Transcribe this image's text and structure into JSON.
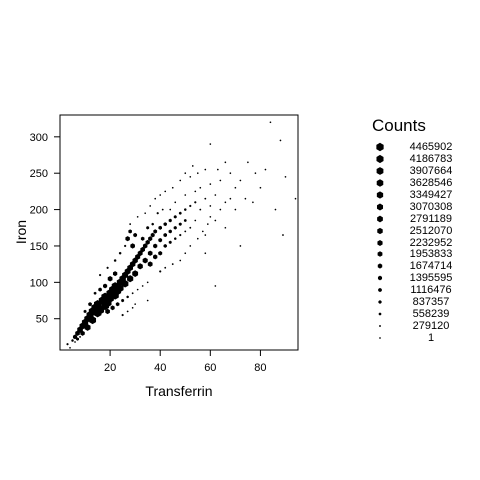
{
  "chart_data": {
    "type": "scatter",
    "subtype": "hexbin",
    "title": "",
    "xlabel": "Transferrin",
    "ylabel": "Iron",
    "xlim": [
      0,
      95
    ],
    "ylim": [
      7,
      330
    ],
    "x_ticks": [
      20,
      40,
      60,
      80
    ],
    "y_ticks": [
      50,
      100,
      150,
      200,
      250,
      300
    ],
    "grid": false,
    "legend_position": "right",
    "legend": {
      "title": "Counts",
      "values": [
        "4465902",
        "4186783",
        "3907664",
        "3628546",
        "3349427",
        "3070308",
        "2791189",
        "2512070",
        "2232952",
        "1953833",
        "1674714",
        "1395595",
        "1116476",
        "837357",
        "558239",
        "279120",
        "1"
      ]
    },
    "count_max": 4465902,
    "points": [
      [
        3,
        15,
        300000.0
      ],
      [
        5,
        20,
        400000.0
      ],
      [
        6,
        25,
        1200000.0
      ],
      [
        7,
        30,
        1500000.0
      ],
      [
        7,
        22,
        600000.0
      ],
      [
        8,
        35,
        2200000.0
      ],
      [
        9,
        30,
        1400000.0
      ],
      [
        9,
        40,
        2600000.0
      ],
      [
        10,
        45,
        2800000.0
      ],
      [
        11,
        38,
        2500000.0
      ],
      [
        11,
        50,
        3000000.0
      ],
      [
        12,
        55,
        3500000.0
      ],
      [
        13,
        48,
        3400000.0
      ],
      [
        13,
        60,
        4000000.0
      ],
      [
        14,
        65,
        3800000.0
      ],
      [
        15,
        58,
        4200000.0
      ],
      [
        15,
        70,
        3600000.0
      ],
      [
        16,
        62,
        4400000.0
      ],
      [
        17,
        75,
        4100000.0
      ],
      [
        18,
        68,
        4460000.0
      ],
      [
        18,
        80,
        3900000.0
      ],
      [
        19,
        72,
        4300000.0
      ],
      [
        20,
        85,
        3700000.0
      ],
      [
        20,
        78,
        4000000.0
      ],
      [
        21,
        90,
        3500000.0
      ],
      [
        22,
        82,
        3800000.0
      ],
      [
        22,
        95,
        3200000.0
      ],
      [
        23,
        88,
        3400000.0
      ],
      [
        24,
        100,
        3100000.0
      ],
      [
        24,
        92,
        3300000.0
      ],
      [
        25,
        105,
        2900000.0
      ],
      [
        26,
        98,
        3000000.0
      ],
      [
        26,
        110,
        2600000.0
      ],
      [
        27,
        115,
        2400000.0
      ],
      [
        28,
        105,
        2700000.0
      ],
      [
        28,
        120,
        2300000.0
      ],
      [
        29,
        125,
        2100000.0
      ],
      [
        30,
        112,
        2400000.0
      ],
      [
        30,
        130,
        2000000.0
      ],
      [
        31,
        135,
        1800000.0
      ],
      [
        32,
        122,
        2000000.0
      ],
      [
        32,
        140,
        1700000.0
      ],
      [
        33,
        145,
        1500000.0
      ],
      [
        34,
        130,
        1800000.0
      ],
      [
        34,
        150,
        1400000.0
      ],
      [
        35,
        155,
        1300000.0
      ],
      [
        36,
        140,
        1500000.0
      ],
      [
        36,
        160,
        1200000.0
      ],
      [
        37,
        165,
        1100000.0
      ],
      [
        38,
        150,
        1200000.0
      ],
      [
        38,
        170,
        1000000.0
      ],
      [
        40,
        175,
        900000.0
      ],
      [
        40,
        158,
        1000000.0
      ],
      [
        42,
        180,
        800000.0
      ],
      [
        42,
        165,
        900000.0
      ],
      [
        44,
        185,
        700000.0
      ],
      [
        44,
        170,
        800000.0
      ],
      [
        46,
        190,
        600000.0
      ],
      [
        46,
        175,
        700000.0
      ],
      [
        48,
        195,
        500000.0
      ],
      [
        48,
        180,
        600000.0
      ],
      [
        50,
        200,
        400000.0
      ],
      [
        50,
        185,
        500000.0
      ],
      [
        52,
        205,
        300000.0
      ],
      [
        54,
        210,
        300000.0
      ],
      [
        56,
        200,
        200000.0
      ],
      [
        58,
        215,
        200000.0
      ],
      [
        60,
        205,
        100000.0
      ],
      [
        62,
        220,
        100000.0
      ],
      [
        27,
        160,
        1400000.0
      ],
      [
        28,
        170,
        900000.0
      ],
      [
        29,
        150,
        1500000.0
      ],
      [
        30,
        165,
        1000000.0
      ],
      [
        33,
        160,
        900000.0
      ],
      [
        35,
        175,
        600000.0
      ],
      [
        37,
        180,
        400000.0
      ],
      [
        39,
        195,
        300000.0
      ],
      [
        41,
        200,
        200000.0
      ],
      [
        36,
        125,
        1600000.0
      ],
      [
        38,
        135,
        1300000.0
      ],
      [
        40,
        140,
        1100000.0
      ],
      [
        42,
        150,
        800000.0
      ],
      [
        44,
        155,
        600000.0
      ],
      [
        46,
        160,
        400000.0
      ],
      [
        48,
        165,
        300000.0
      ],
      [
        50,
        170,
        200000.0
      ],
      [
        52,
        175,
        200000.0
      ],
      [
        54,
        185,
        100000.0
      ],
      [
        20,
        105,
        1600000.0
      ],
      [
        22,
        112,
        1300000.0
      ],
      [
        18,
        95,
        1200000.0
      ],
      [
        16,
        90,
        900000.0
      ],
      [
        14,
        85,
        500000.0
      ],
      [
        12,
        70,
        900000.0
      ],
      [
        10,
        60,
        600000.0
      ],
      [
        19,
        60,
        1500000.0
      ],
      [
        21,
        65,
        1200000.0
      ],
      [
        23,
        70,
        900000.0
      ],
      [
        25,
        75,
        600000.0
      ],
      [
        27,
        80,
        400000.0
      ],
      [
        29,
        85,
        200000.0
      ],
      [
        31,
        90,
        100000.0
      ],
      [
        33,
        95,
        100000.0
      ],
      [
        35,
        100,
        100000.0
      ],
      [
        16,
        110,
        300000.0
      ],
      [
        19,
        120,
        300000.0
      ],
      [
        22,
        130,
        400000.0
      ],
      [
        24,
        140,
        400000.0
      ],
      [
        26,
        150,
        300000.0
      ],
      [
        28,
        180,
        200000.0
      ],
      [
        31,
        190,
        100000.0
      ],
      [
        34,
        195,
        100000.0
      ],
      [
        36,
        205,
        100000.0
      ],
      [
        38,
        215,
        100000.0
      ],
      [
        40,
        220,
        100000.0
      ],
      [
        42,
        225,
        100000.0
      ],
      [
        45,
        230,
        100000.0
      ],
      [
        48,
        240,
        100000.0
      ],
      [
        52,
        245,
        100000.0
      ],
      [
        55,
        250,
        100000.0
      ],
      [
        58,
        255,
        100000.0
      ],
      [
        44,
        200,
        100000.0
      ],
      [
        46,
        210,
        100000.0
      ],
      [
        50,
        220,
        100000.0
      ],
      [
        54,
        225,
        100000.0
      ],
      [
        56,
        230,
        100000.0
      ],
      [
        60,
        235,
        100000.0
      ],
      [
        64,
        240,
        100000.0
      ],
      [
        68,
        250,
        100000.0
      ],
      [
        70,
        230,
        100000.0
      ],
      [
        72,
        240,
        100000.0
      ],
      [
        60,
        190,
        100000.0
      ],
      [
        64,
        200,
        100000.0
      ],
      [
        66,
        210,
        100000.0
      ],
      [
        68,
        215,
        100000.0
      ],
      [
        57,
        170,
        100000.0
      ],
      [
        59,
        180,
        100000.0
      ],
      [
        62,
        185,
        100000.0
      ],
      [
        45,
        125,
        200000.0
      ],
      [
        48,
        130,
        100000.0
      ],
      [
        50,
        140,
        100000.0
      ],
      [
        52,
        150,
        100000.0
      ],
      [
        55,
        160,
        100000.0
      ],
      [
        58,
        165,
        100000.0
      ],
      [
        40,
        115,
        300000.0
      ],
      [
        42,
        120,
        200000.0
      ],
      [
        25,
        55,
        300000.0
      ],
      [
        27,
        60,
        200000.0
      ],
      [
        29,
        65,
        100000.0
      ],
      [
        8,
        25,
        200000.0
      ],
      [
        6,
        18,
        100000.0
      ],
      [
        4,
        10,
        100000.0
      ],
      [
        75,
        265,
        100000.0
      ],
      [
        78,
        250,
        100000.0
      ],
      [
        80,
        230,
        100000.0
      ],
      [
        84,
        320,
        100000.0
      ],
      [
        88,
        295,
        100000.0
      ],
      [
        90,
        245,
        100000.0
      ],
      [
        94,
        215,
        100000.0
      ],
      [
        89,
        165,
        200000.0
      ],
      [
        86,
        200,
        100000.0
      ],
      [
        72,
        150,
        100000.0
      ],
      [
        62,
        95,
        100000.0
      ],
      [
        35,
        75,
        100000.0
      ],
      [
        30,
        70,
        100000.0
      ],
      [
        58,
        140,
        100000.0
      ],
      [
        66,
        175,
        100000.0
      ],
      [
        70,
        200,
        100000.0
      ],
      [
        74,
        215,
        100000.0
      ],
      [
        77,
        210,
        100000.0
      ],
      [
        82,
        255,
        100000.0
      ],
      [
        63,
        255,
        100000.0
      ],
      [
        66,
        265,
        100000.0
      ],
      [
        60,
        290,
        100000.0
      ],
      [
        53,
        260,
        100000.0
      ],
      [
        50,
        250,
        100000.0
      ]
    ]
  }
}
